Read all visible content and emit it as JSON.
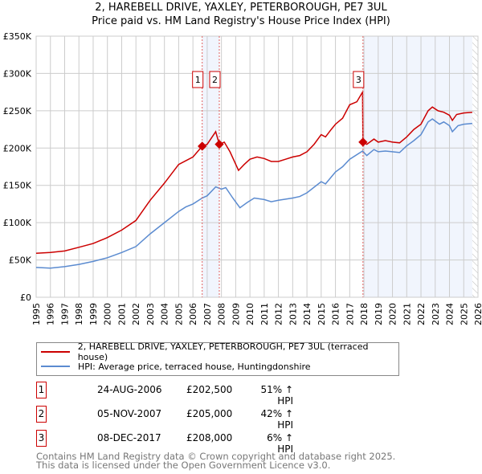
{
  "header": {
    "title": "2, HAREBELL DRIVE, YAXLEY, PETERBOROUGH, PE7 3UL",
    "subtitle": "Price paid vs. HM Land Registry's House Price Index (HPI)"
  },
  "chart_data": {
    "type": "line",
    "title": "2, HAREBELL DRIVE, YAXLEY, PETERBOROUGH, PE7 3UL",
    "subtitle": "Price paid vs. HM Land Registry's House Price Index (HPI)",
    "xlim": [
      1995,
      2026
    ],
    "ylim": [
      0,
      350000
    ],
    "x_ticks": [
      "1995",
      "1996",
      "1997",
      "1998",
      "1999",
      "2000",
      "2001",
      "2002",
      "2003",
      "2004",
      "2005",
      "2006",
      "2007",
      "2008",
      "2009",
      "2010",
      "2011",
      "2012",
      "2013",
      "2014",
      "2015",
      "2016",
      "2017",
      "2018",
      "2019",
      "2020",
      "2021",
      "2022",
      "2023",
      "2024",
      "2025",
      "2026"
    ],
    "y_ticks": [
      {
        "v": 0,
        "l": "£0"
      },
      {
        "v": 50000,
        "l": "£50K"
      },
      {
        "v": 100000,
        "l": "£100K"
      },
      {
        "v": 150000,
        "l": "£150K"
      },
      {
        "v": 200000,
        "l": "£200K"
      },
      {
        "v": 250000,
        "l": "£250K"
      },
      {
        "v": 300000,
        "l": "£300K"
      },
      {
        "v": 350000,
        "l": "£350K"
      }
    ],
    "grid": true,
    "series": [
      {
        "name": "2, HAREBELL DRIVE, YAXLEY, PETERBOROUGH, PE7 3UL (terraced house)",
        "color": "#cc0000",
        "x": [
          1995,
          1996,
          1997,
          1998,
          1999,
          2000,
          2001,
          2002,
          2003,
          2004,
          2005,
          2005.5,
          2006,
          2006.65,
          2007,
          2007.6,
          2007.85,
          2008.2,
          2008.6,
          2009.2,
          2009.6,
          2010,
          2010.5,
          2011,
          2011.5,
          2012,
          2012.5,
          2013,
          2013.5,
          2014,
          2014.5,
          2015,
          2015.3,
          2015.7,
          2016,
          2016.5,
          2017,
          2017.5,
          2017.9,
          2017.93,
          2018.2,
          2018.7,
          2019,
          2019.5,
          2020,
          2020.5,
          2021,
          2021.5,
          2022,
          2022.5,
          2022.8,
          2023.2,
          2023.6,
          2024,
          2024.2,
          2024.5,
          2025,
          2025.6
        ],
        "y": [
          59000,
          60000,
          62000,
          67000,
          72000,
          80000,
          90000,
          103000,
          130000,
          153000,
          178000,
          183000,
          188000,
          202500,
          205000,
          222000,
          205000,
          208000,
          195000,
          170000,
          178000,
          185000,
          188000,
          186000,
          182000,
          182000,
          185000,
          188000,
          190000,
          195000,
          205000,
          218000,
          215000,
          225000,
          232000,
          240000,
          258000,
          262000,
          275000,
          208000,
          205000,
          212000,
          208000,
          210000,
          208000,
          207000,
          215000,
          225000,
          232000,
          250000,
          255000,
          250000,
          248000,
          244000,
          237000,
          245000,
          247000,
          248000
        ]
      },
      {
        "name": "HPI: Average price, terraced house, Huntingdonshire",
        "color": "#5b8bd0",
        "x": [
          1995,
          1996,
          1997,
          1998,
          1999,
          2000,
          2001,
          2002,
          2003,
          2004,
          2005,
          2005.5,
          2006,
          2006.65,
          2007,
          2007.6,
          2008,
          2008.3,
          2008.8,
          2009.3,
          2009.8,
          2010.3,
          2011,
          2011.5,
          2012,
          2013,
          2013.5,
          2014,
          2015,
          2015.3,
          2016,
          2016.5,
          2017,
          2017.9,
          2018.2,
          2018.7,
          2019,
          2019.5,
          2020,
          2020.5,
          2021,
          2021.5,
          2022,
          2022.5,
          2022.8,
          2023.3,
          2023.6,
          2024,
          2024.2,
          2024.6,
          2025,
          2025.6
        ],
        "y": [
          40000,
          39000,
          41000,
          44000,
          48000,
          53000,
          60000,
          68000,
          85000,
          100000,
          115000,
          121000,
          125000,
          133000,
          136000,
          148000,
          145000,
          147000,
          133000,
          120000,
          127000,
          133000,
          131000,
          128000,
          130000,
          133000,
          135000,
          140000,
          155000,
          152000,
          168000,
          175000,
          185000,
          196000,
          190000,
          198000,
          195000,
          196000,
          195000,
          194000,
          203000,
          210000,
          218000,
          235000,
          239000,
          232000,
          235000,
          230000,
          222000,
          230000,
          232000,
          233000
        ]
      }
    ],
    "sales": [
      {
        "n": "1",
        "x": 2006.65,
        "y": 202500
      },
      {
        "n": "2",
        "x": 2007.85,
        "y": 205000
      },
      {
        "n": "3",
        "x": 2017.93,
        "y": 208000
      }
    ],
    "shaded": [
      [
        2006.65,
        2007.85
      ],
      [
        2017.93,
        2025.6
      ]
    ],
    "hatched_from": 2025.6,
    "legend": "below"
  },
  "legend": {
    "red": "2, HAREBELL DRIVE, YAXLEY, PETERBOROUGH, PE7 3UL (terraced house)",
    "blue": "HPI: Average price, terraced house, Huntingdonshire"
  },
  "transactions": [
    {
      "n": "1",
      "date": "24-AUG-2006",
      "price": "£202,500",
      "delta": "51% ↑ HPI"
    },
    {
      "n": "2",
      "date": "05-NOV-2007",
      "price": "£205,000",
      "delta": "42% ↑ HPI"
    },
    {
      "n": "3",
      "date": "08-DEC-2017",
      "price": "£208,000",
      "delta": "6% ↑ HPI"
    }
  ],
  "footer": {
    "line1": "Contains HM Land Registry data © Crown copyright and database right 2025.",
    "line2": "This data is licensed under the Open Government Licence v3.0."
  }
}
